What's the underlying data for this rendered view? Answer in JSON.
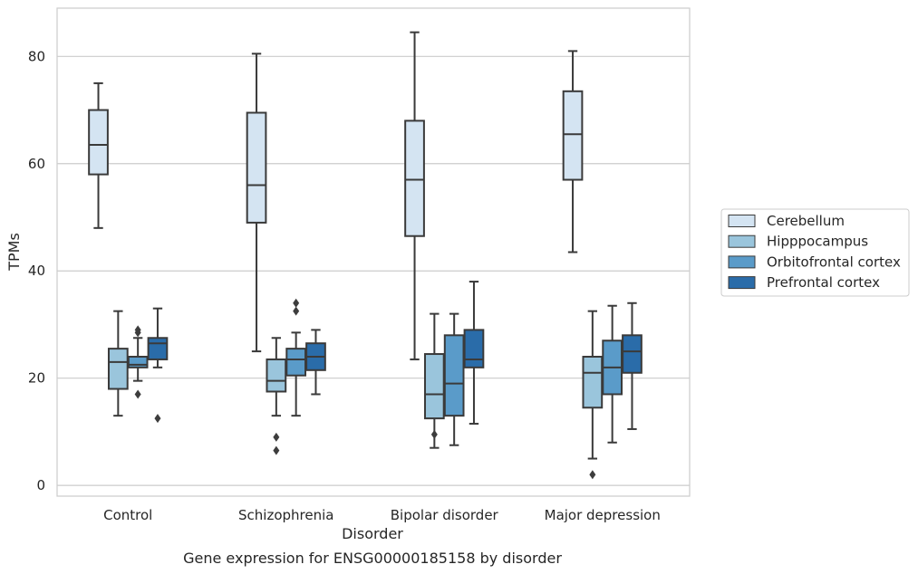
{
  "chart_data": {
    "type": "box",
    "title": "Gene expression for ENSG00000185158 by disorder",
    "xlabel": "Disorder",
    "ylabel": "TPMs",
    "ylim": [
      -2,
      89
    ],
    "yticks": [
      0,
      20,
      40,
      60,
      80
    ],
    "grid": "horizontal",
    "legend_position": "right",
    "categories": [
      "Control",
      "Schizophrenia",
      "Bipolar disorder",
      "Major depression"
    ],
    "series": [
      {
        "name": "Cerebellum",
        "color": "#d4e4f2",
        "boxes": [
          {
            "whislo": 48,
            "q1": 58,
            "med": 63.5,
            "q3": 70,
            "whishi": 75,
            "fliers": []
          },
          {
            "whislo": 25,
            "q1": 49,
            "med": 56,
            "q3": 69.5,
            "whishi": 80.5,
            "fliers": []
          },
          {
            "whislo": 23.5,
            "q1": 46.5,
            "med": 57,
            "q3": 68,
            "whishi": 84.5,
            "fliers": []
          },
          {
            "whislo": 43.5,
            "q1": 57,
            "med": 65.5,
            "q3": 73.5,
            "whishi": 81,
            "fliers": []
          }
        ]
      },
      {
        "name": "Hipppocampus",
        "color": "#9ac5dc",
        "boxes": [
          {
            "whislo": 13,
            "q1": 18,
            "med": 23,
            "q3": 25.5,
            "whishi": 32.5,
            "fliers": []
          },
          {
            "whislo": 13,
            "q1": 17.5,
            "med": 19.5,
            "q3": 23.5,
            "whishi": 27.5,
            "fliers": [
              9,
              6.5
            ]
          },
          {
            "whislo": 7,
            "q1": 12.5,
            "med": 17,
            "q3": 24.5,
            "whishi": 32,
            "fliers": [
              9.5
            ]
          },
          {
            "whislo": 5,
            "q1": 14.5,
            "med": 21,
            "q3": 24,
            "whishi": 32.5,
            "fliers": [
              2
            ]
          }
        ]
      },
      {
        "name": "Orbitofrontal cortex",
        "color": "#5a9bc9",
        "boxes": [
          {
            "whislo": 19.5,
            "q1": 22,
            "med": 22.5,
            "q3": 24,
            "whishi": 27.5,
            "fliers": [
              28.5,
              29,
              17
            ]
          },
          {
            "whislo": 13,
            "q1": 20.5,
            "med": 23.5,
            "q3": 25.5,
            "whishi": 28.5,
            "fliers": [
              34,
              32.5
            ]
          },
          {
            "whislo": 7.5,
            "q1": 13,
            "med": 19,
            "q3": 28,
            "whishi": 32,
            "fliers": []
          },
          {
            "whislo": 8,
            "q1": 17,
            "med": 22,
            "q3": 27,
            "whishi": 33.5,
            "fliers": []
          }
        ]
      },
      {
        "name": "Prefrontal cortex",
        "color": "#2a6ca9",
        "boxes": [
          {
            "whislo": 22,
            "q1": 23.5,
            "med": 26.5,
            "q3": 27.5,
            "whishi": 33,
            "fliers": [
              12.5
            ]
          },
          {
            "whislo": 17,
            "q1": 21.5,
            "med": 24,
            "q3": 26.5,
            "whishi": 29,
            "fliers": []
          },
          {
            "whislo": 11.5,
            "q1": 22,
            "med": 23.5,
            "q3": 29,
            "whishi": 38,
            "fliers": []
          },
          {
            "whislo": 10.5,
            "q1": 21,
            "med": 25,
            "q3": 28,
            "whishi": 34,
            "fliers": []
          }
        ]
      }
    ]
  }
}
